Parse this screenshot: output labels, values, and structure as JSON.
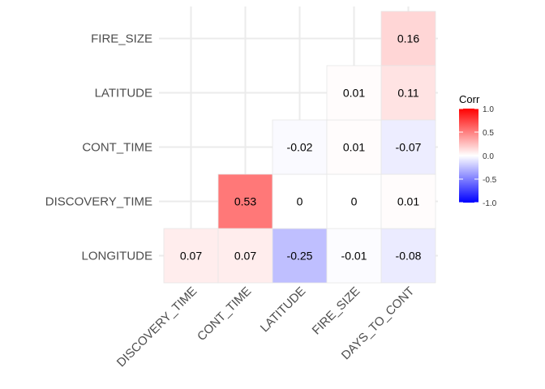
{
  "chart_data": {
    "type": "heatmap",
    "title": "",
    "xlabel": "",
    "ylabel": "",
    "x_categories": [
      "DISCOVERY_TIME",
      "CONT_TIME",
      "LATITUDE",
      "FIRE_SIZE",
      "DAYS_TO_CONT"
    ],
    "y_categories": [
      "LONGITUDE",
      "DISCOVERY_TIME",
      "CONT_TIME",
      "LATITUDE",
      "FIRE_SIZE"
    ],
    "cells": [
      {
        "x": "DISCOVERY_TIME",
        "y": "LONGITUDE",
        "value": 0.07,
        "label": "0.07"
      },
      {
        "x": "CONT_TIME",
        "y": "LONGITUDE",
        "value": 0.07,
        "label": "0.07"
      },
      {
        "x": "LATITUDE",
        "y": "LONGITUDE",
        "value": -0.25,
        "label": "-0.25"
      },
      {
        "x": "FIRE_SIZE",
        "y": "LONGITUDE",
        "value": -0.01,
        "label": "-0.01"
      },
      {
        "x": "DAYS_TO_CONT",
        "y": "LONGITUDE",
        "value": -0.08,
        "label": "-0.08"
      },
      {
        "x": "CONT_TIME",
        "y": "DISCOVERY_TIME",
        "value": 0.53,
        "label": "0.53"
      },
      {
        "x": "LATITUDE",
        "y": "DISCOVERY_TIME",
        "value": 0,
        "label": "0"
      },
      {
        "x": "FIRE_SIZE",
        "y": "DISCOVERY_TIME",
        "value": 0,
        "label": "0"
      },
      {
        "x": "DAYS_TO_CONT",
        "y": "DISCOVERY_TIME",
        "value": 0.01,
        "label": "0.01"
      },
      {
        "x": "LATITUDE",
        "y": "CONT_TIME",
        "value": -0.02,
        "label": "-0.02"
      },
      {
        "x": "FIRE_SIZE",
        "y": "CONT_TIME",
        "value": 0.01,
        "label": "0.01"
      },
      {
        "x": "DAYS_TO_CONT",
        "y": "CONT_TIME",
        "value": -0.07,
        "label": "-0.07"
      },
      {
        "x": "FIRE_SIZE",
        "y": "LATITUDE",
        "value": 0.01,
        "label": "0.01"
      },
      {
        "x": "DAYS_TO_CONT",
        "y": "LATITUDE",
        "value": 0.11,
        "label": "0.11"
      },
      {
        "x": "DAYS_TO_CONT",
        "y": "FIRE_SIZE",
        "value": 0.16,
        "label": "0.16"
      }
    ],
    "legend": {
      "title": "Corr",
      "position": "right",
      "ticks": [
        "1.0",
        "0.5",
        "0.0",
        "-0.5",
        "-1.0"
      ],
      "range": [
        -1,
        1
      ],
      "colors": {
        "low": "#0000ff",
        "mid": "#ffffff",
        "high": "#ff0000"
      }
    },
    "grid": true
  }
}
